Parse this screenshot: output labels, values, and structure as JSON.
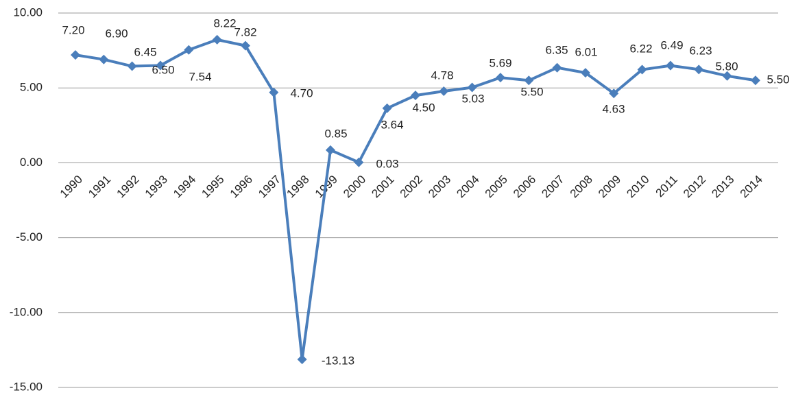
{
  "chart_data": {
    "type": "line",
    "categories": [
      "1990",
      "1991",
      "1992",
      "1993",
      "1994",
      "1995",
      "1996",
      "1997",
      "1998",
      "1999",
      "2000",
      "2001",
      "2002",
      "2003",
      "2004",
      "2005",
      "2006",
      "2007",
      "2008",
      "2009",
      "2010",
      "2011",
      "2012",
      "2013",
      "2014"
    ],
    "series": [
      {
        "color": "#4a7ebb",
        "values": [
          7.2,
          6.9,
          6.45,
          6.5,
          7.54,
          8.22,
          7.82,
          4.7,
          -13.13,
          0.85,
          0.03,
          3.64,
          4.5,
          4.78,
          5.03,
          5.69,
          5.5,
          6.35,
          6.01,
          4.63,
          6.22,
          6.49,
          6.23,
          5.8,
          5.5
        ],
        "value_labels": [
          "7.20",
          "6.90",
          "6.45",
          "6.50",
          "7.54",
          "8.22",
          "7.82",
          "4.70",
          "-13.13",
          "0.85",
          "0.03",
          "3.64",
          "4.50",
          "4.78",
          "5.03",
          "5.69",
          "5.50",
          "6.35",
          "6.01",
          "4.63",
          "6.22",
          "6.49",
          "6.23",
          "5.80",
          "5.50"
        ]
      }
    ],
    "ylim": [
      -15,
      10
    ],
    "yticks": [
      {
        "value": -15,
        "label": "-15.00"
      },
      {
        "value": -10,
        "label": "-10.00"
      },
      {
        "value": -5,
        "label": "-5.00"
      },
      {
        "value": 0,
        "label": "0.00"
      },
      {
        "value": 5,
        "label": "5.00"
      },
      {
        "value": 10,
        "label": "10.00"
      }
    ],
    "grid": true
  }
}
